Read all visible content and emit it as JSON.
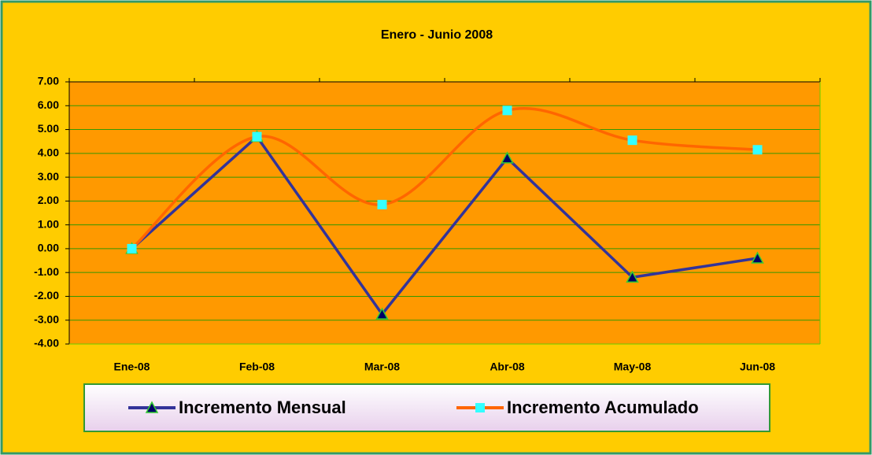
{
  "chart_data": {
    "type": "line",
    "title": "Enero - Junio 2008",
    "categories": [
      "Ene-08",
      "Feb-08",
      "Mar-08",
      "Abr-08",
      "May-08",
      "Jun-08"
    ],
    "series": [
      {
        "name": "Incremento Mensual",
        "color": "#333399",
        "marker": "triangle",
        "marker_color": "#000066",
        "smooth": false,
        "values": [
          0,
          4.7,
          -2.75,
          3.8,
          -1.2,
          -0.4
        ]
      },
      {
        "name": "Incremento Acumulado",
        "color": "#FF6600",
        "marker": "square",
        "marker_color": "#33FFFF",
        "smooth": true,
        "values": [
          0,
          4.7,
          1.85,
          5.8,
          4.55,
          4.15
        ]
      }
    ],
    "ylim": [
      -4,
      7
    ],
    "yticks": [
      {
        "value": -4,
        "label": "-4.00"
      },
      {
        "value": -3,
        "label": "-3.00"
      },
      {
        "value": -2,
        "label": "-2.00"
      },
      {
        "value": -1,
        "label": "-1.00"
      },
      {
        "value": 0,
        "label": "0.00"
      },
      {
        "value": 1,
        "label": "1.00"
      },
      {
        "value": 2,
        "label": "2.00"
      },
      {
        "value": 3,
        "label": "3.00"
      },
      {
        "value": 4,
        "label": "4.00"
      },
      {
        "value": 5,
        "label": "5.00"
      },
      {
        "value": 6,
        "label": "6.00"
      },
      {
        "value": 7,
        "label": "7.00"
      }
    ],
    "grid": true,
    "legend": "bottom"
  }
}
